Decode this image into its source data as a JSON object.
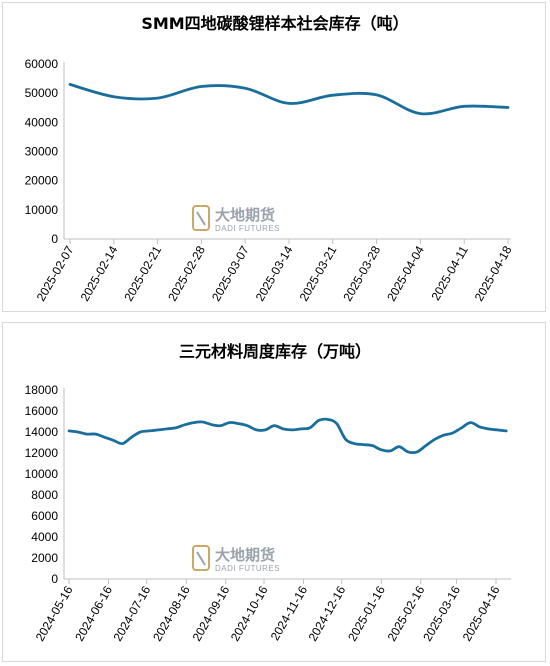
{
  "watermark": {
    "name": "大地期货",
    "sub": "DADI FUTURES"
  },
  "chart_data": [
    {
      "type": "line",
      "title": "SMM四地碳酸锂样本社会库存（吨）",
      "xlabel": "",
      "ylabel": "",
      "ylim": [
        0,
        60000
      ],
      "yticks": [
        "0",
        "10000",
        "20000",
        "30000",
        "40000",
        "50000",
        "60000"
      ],
      "xtick_labels": [
        "2025-02-07",
        "2025-02-14",
        "2025-02-21",
        "2025-02-28",
        "2025-03-07",
        "2025-03-14",
        "2025-03-21",
        "2025-03-28",
        "2025-04-04",
        "2025-04-11",
        "2025-04-18"
      ],
      "color": "#1a6e9c",
      "grid": false,
      "series": [
        {
          "x": [
            "2025-02-07",
            "2025-02-14",
            "2025-02-21",
            "2025-02-28",
            "2025-03-07",
            "2025-03-14",
            "2025-03-21",
            "2025-03-28",
            "2025-04-04",
            "2025-04-11",
            "2025-04-18"
          ],
          "values": [
            53000,
            48800,
            48300,
            52300,
            51700,
            46500,
            49300,
            49400,
            43000,
            45500,
            45100
          ]
        }
      ]
    },
    {
      "type": "line",
      "title": "三元材料周度库存（万吨）",
      "xlabel": "",
      "ylabel": "",
      "ylim": [
        0,
        18000
      ],
      "yticks": [
        "0",
        "2000",
        "4000",
        "6000",
        "8000",
        "10000",
        "12000",
        "14000",
        "16000",
        "18000"
      ],
      "xtick_labels": [
        "2024-05-16",
        "2024-06-16",
        "2024-07-16",
        "2024-08-16",
        "2024-09-16",
        "2024-10-16",
        "2024-11-16",
        "2024-12-16",
        "2025-01-16",
        "2025-02-16",
        "2025-03-16",
        "2025-04-16"
      ],
      "color": "#1a6e9c",
      "grid": false,
      "series": [
        {
          "x": [
            "2024-05-16",
            "2024-05-23",
            "2024-05-30",
            "2024-06-06",
            "2024-06-13",
            "2024-06-20",
            "2024-06-27",
            "2024-07-04",
            "2024-07-11",
            "2024-07-18",
            "2024-07-25",
            "2024-08-01",
            "2024-08-08",
            "2024-08-15",
            "2024-08-22",
            "2024-08-29",
            "2024-09-05",
            "2024-09-12",
            "2024-09-19",
            "2024-09-26",
            "2024-10-03",
            "2024-10-10",
            "2024-10-17",
            "2024-10-24",
            "2024-10-31",
            "2024-11-07",
            "2024-11-14",
            "2024-11-21",
            "2024-11-28",
            "2024-12-05",
            "2024-12-12",
            "2024-12-19",
            "2024-12-26",
            "2025-01-02",
            "2025-01-09",
            "2025-01-16",
            "2025-01-23",
            "2025-01-30",
            "2025-02-06",
            "2025-02-13",
            "2025-02-20",
            "2025-02-27",
            "2025-03-06",
            "2025-03-13",
            "2025-03-20",
            "2025-03-27",
            "2025-04-03",
            "2025-04-10",
            "2025-04-17",
            "2025-04-24"
          ],
          "values": [
            14100,
            14000,
            13800,
            13800,
            13500,
            13200,
            12900,
            13500,
            14000,
            14100,
            14200,
            14300,
            14400,
            14700,
            14900,
            14950,
            14700,
            14600,
            14900,
            14800,
            14600,
            14200,
            14200,
            14600,
            14300,
            14200,
            14300,
            14400,
            15100,
            15200,
            14800,
            13300,
            12900,
            12800,
            12700,
            12300,
            12200,
            12600,
            12100,
            12100,
            12700,
            13300,
            13700,
            13900,
            14400,
            14900,
            14500,
            14300,
            14200,
            14100
          ]
        }
      ]
    }
  ]
}
